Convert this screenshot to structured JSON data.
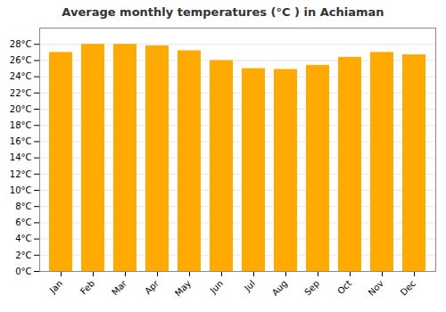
{
  "chart_data": {
    "type": "bar",
    "title": "Average monthly temperatures (°C ) in Achiaman",
    "categories": [
      "Jan",
      "Feb",
      "Mar",
      "Apr",
      "May",
      "Jun",
      "Jul",
      "Aug",
      "Sep",
      "Oct",
      "Nov",
      "Dec"
    ],
    "values": [
      27.0,
      28.0,
      28.0,
      27.8,
      27.2,
      26.0,
      25.0,
      24.9,
      25.4,
      26.4,
      27.0,
      26.7
    ],
    "color": "#FFAA00",
    "ylim": [
      0,
      30
    ],
    "yticks": [
      {
        "value": 0,
        "label": "0°C"
      },
      {
        "value": 2,
        "label": "2°C"
      },
      {
        "value": 4,
        "label": "4°C"
      },
      {
        "value": 6,
        "label": "6°C"
      },
      {
        "value": 8,
        "label": "8°C"
      },
      {
        "value": 10,
        "label": "10°C"
      },
      {
        "value": 12,
        "label": "12°C"
      },
      {
        "value": 14,
        "label": "14°C"
      },
      {
        "value": 16,
        "label": "16°C"
      },
      {
        "value": 18,
        "label": "18°C"
      },
      {
        "value": 20,
        "label": "20°C"
      },
      {
        "value": 22,
        "label": "22°C"
      },
      {
        "value": 24,
        "label": "24°C"
      },
      {
        "value": 26,
        "label": "26°C"
      },
      {
        "value": 28,
        "label": "28°C"
      }
    ],
    "grid": true
  }
}
